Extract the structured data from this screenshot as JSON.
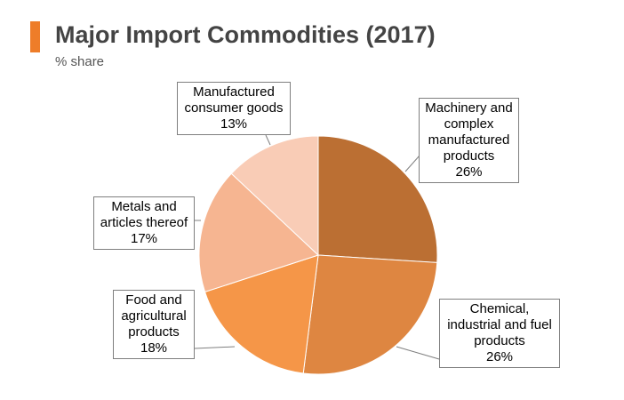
{
  "header": {
    "title": "Major Import Commodities (2017)",
    "subtitle": "% share",
    "accent_color": "#ee7d29"
  },
  "chart_data": {
    "type": "pie",
    "title": "Major Import Commodities (2017)",
    "subtitle": "% share",
    "slices": [
      {
        "label": "Machinery and complex manufactured products",
        "value": 26,
        "value_label": "26%",
        "color": "#bb6f33"
      },
      {
        "label": "Chemical, industrial and fuel products",
        "value": 26,
        "value_label": "26%",
        "color": "#de8641"
      },
      {
        "label": "Food and agricultural products",
        "value": 18,
        "value_label": "18%",
        "color": "#f59648"
      },
      {
        "label": "Metals and articles thereof",
        "value": 17,
        "value_label": "17%",
        "color": "#f6b591"
      },
      {
        "label": "Manufactured consumer goods",
        "value": 13,
        "value_label": "13%",
        "color": "#f9ccb6"
      }
    ],
    "label_lines": {
      "machinery": [
        "Machinery and",
        "complex",
        "manufactured",
        "products"
      ],
      "chemical": [
        "Chemical,",
        "industrial and fuel",
        "products"
      ],
      "food": [
        "Food and",
        "agricultural",
        "products"
      ],
      "metals": [
        "Metals and",
        "articles thereof"
      ],
      "consumer": [
        "Manufactured",
        "consumer goods"
      ]
    }
  }
}
